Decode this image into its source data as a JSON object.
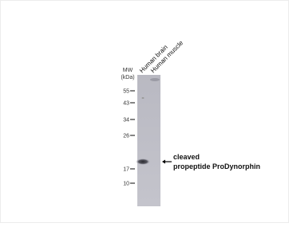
{
  "blot": {
    "lanes": [
      "Human brain",
      "Human muscle"
    ],
    "mw_label": "MW",
    "mw_unit": "(kDa)",
    "markers": [
      55,
      43,
      34,
      26,
      17,
      10
    ],
    "annotation": [
      "cleaved",
      "propeptide ProDynorphin"
    ]
  }
}
